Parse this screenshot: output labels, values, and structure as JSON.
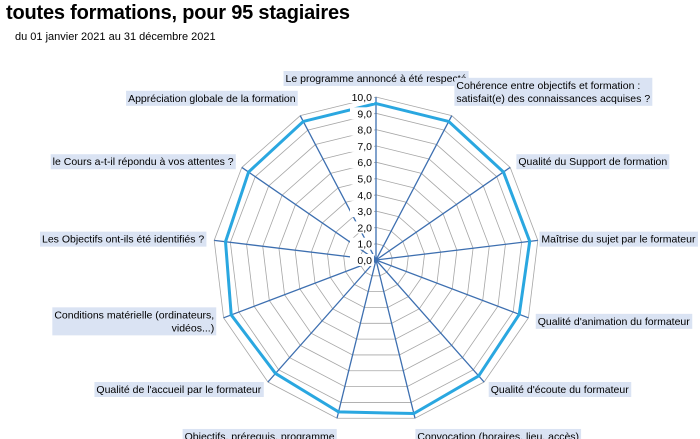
{
  "header": {
    "title": "toutes formations, pour 95 stagiaires",
    "subtitle": "du 01 janvier 2021 au 31 décembre 2021"
  },
  "chart_data": {
    "type": "radar",
    "title": "toutes formations, pour 95 stagiaires",
    "subtitle": "du 01 janvier 2021 au 31 décembre 2021",
    "rlim": [
      0,
      10
    ],
    "ticks": [
      "0,0",
      "1,0",
      "2,0",
      "3,0",
      "4,0",
      "5,0",
      "6,0",
      "7,0",
      "8,0",
      "9,0",
      "10,0"
    ],
    "grid": true,
    "categories": [
      "Le programme annoncé à été respecté",
      [
        "Cohérence entre objectifs et formation :",
        "satisfait(e) des connaissances acquises ?"
      ],
      "Qualité du Support de formation",
      "Maîtrise du sujet par le formateur",
      "Qualité d'animation du formateur",
      "Qualité d'écoute du formateur",
      "Convocation (horaires, lieu, accès)",
      "Objectifs, prérequis, programme",
      "Qualité de l'accueil par le formateur",
      [
        "Conditions matérielle (ordinateurs,",
        "vidéos...)"
      ],
      "Les Objectifs ont-ils été identifiés ?",
      "le Cours a-t-il répondu à vos attentes ?",
      "Appréciation globale de la formation"
    ],
    "series": [
      {
        "values": [
          9.6,
          9.6,
          9.5,
          9.5,
          9.4,
          9.5,
          9.7,
          9.6,
          9.3,
          9.5,
          9.3,
          9.5,
          9.6
        ],
        "color": "#2aa7e0"
      }
    ],
    "colors": {
      "series": "#2aa7e0",
      "axis": "#3d6fb0",
      "grid": "#a6a6a6",
      "label_bg": "#dae3f3"
    }
  }
}
